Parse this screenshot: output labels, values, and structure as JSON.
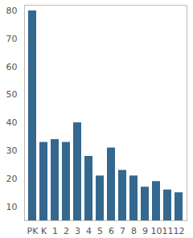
{
  "chart_data": {
    "type": "bar",
    "categories": [
      "PK",
      "K",
      "1",
      "2",
      "3",
      "4",
      "5",
      "6",
      "7",
      "8",
      "9",
      "10",
      "11",
      "12"
    ],
    "values": [
      80,
      33,
      34,
      33,
      40,
      28,
      21,
      31,
      23,
      21,
      17,
      19,
      16,
      15
    ],
    "color": "#34688f",
    "ylim": [
      5,
      82
    ],
    "yticks": [
      10,
      20,
      30,
      40,
      50,
      60,
      70,
      80
    ],
    "grid": false
  }
}
